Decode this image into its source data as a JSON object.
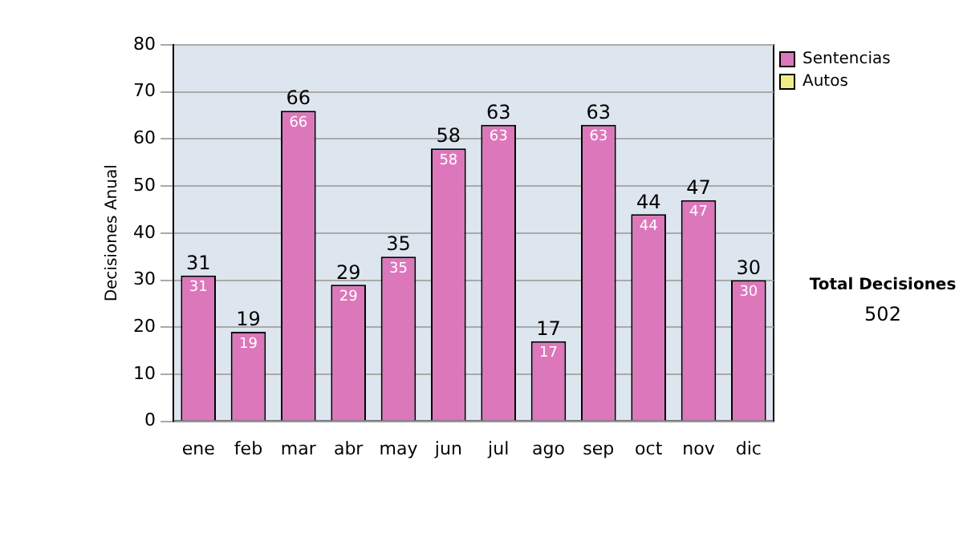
{
  "chart_data": {
    "type": "bar",
    "ylabel": "Decisiones Anual",
    "categories": [
      "ene",
      "feb",
      "mar",
      "abr",
      "may",
      "jun",
      "jul",
      "ago",
      "sep",
      "oct",
      "nov",
      "dic"
    ],
    "series": [
      {
        "name": "Sentencias",
        "color": "#dd77bb",
        "values": [
          31,
          19,
          66,
          29,
          35,
          58,
          63,
          17,
          63,
          44,
          47,
          30
        ],
        "value_labels": [
          "31",
          "19",
          "66",
          "29",
          "35",
          "58",
          "63",
          "17",
          "63",
          "44",
          "47",
          "30"
        ]
      },
      {
        "name": "Autos",
        "color": "#eeee88",
        "values": [
          0,
          0,
          0,
          0,
          0,
          0,
          0,
          0,
          0,
          0,
          0,
          0
        ]
      }
    ],
    "stacked": true,
    "totals": [
      "31",
      "19",
      "66",
      "29",
      "35",
      "58",
      "63",
      "17",
      "63",
      "44",
      "47",
      "30"
    ],
    "ylim": [
      0,
      80
    ],
    "yticks": [
      0,
      10,
      20,
      30,
      40,
      50,
      60,
      70,
      80
    ],
    "grid": "y",
    "legend": "right",
    "annotations": [
      "Total Decisiones",
      "502"
    ]
  }
}
